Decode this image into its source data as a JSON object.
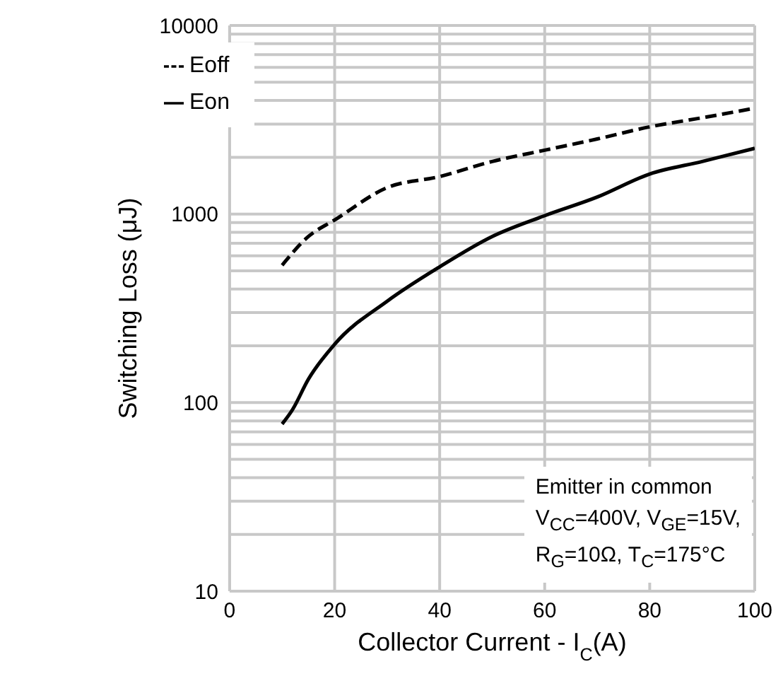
{
  "chart_data": {
    "type": "line",
    "xlabel": "Collector Current - I$_{C}$(A)",
    "ylabel": "Switching Loss (μJ)",
    "xlim": [
      0,
      100
    ],
    "xticks": [
      0,
      20,
      40,
      60,
      80,
      100
    ],
    "ylim": [
      10,
      10000
    ],
    "log": "y",
    "yticks": [
      10,
      {
        "value": 20,
        "label": null
      },
      {
        "value": 30,
        "label": null
      },
      {
        "value": 40,
        "label": null
      },
      {
        "value": 50,
        "label": null
      },
      {
        "value": 60,
        "label": null
      },
      {
        "value": 70,
        "label": null
      },
      {
        "value": 80,
        "label": null
      },
      {
        "value": 90,
        "label": null
      },
      100,
      {
        "value": 200,
        "label": null
      },
      {
        "value": 300,
        "label": null
      },
      {
        "value": 400,
        "label": null
      },
      {
        "value": 500,
        "label": null
      },
      {
        "value": 600,
        "label": null
      },
      {
        "value": 700,
        "label": null
      },
      {
        "value": 800,
        "label": null
      },
      {
        "value": 900,
        "label": null
      },
      1000,
      {
        "value": 2000,
        "label": null
      },
      {
        "value": 3000,
        "label": null
      },
      {
        "value": 4000,
        "label": null
      },
      {
        "value": 5000,
        "label": null
      },
      {
        "value": 6000,
        "label": null
      },
      {
        "value": 7000,
        "label": null
      },
      {
        "value": 8000,
        "label": null
      },
      {
        "value": 9000,
        "label": null
      },
      10000
    ],
    "grid": true,
    "legend": "top left",
    "marker": "none",
    "series": [
      {
        "name": "Eon",
        "color": "#000000",
        "line_style": "solid",
        "x": [
          10,
          12,
          15,
          20,
          30,
          40,
          50,
          60,
          70,
          80,
          90,
          100
        ],
        "values": [
          77,
          92,
          133,
          204,
          345,
          525,
          760,
          980,
          1230,
          1630,
          1900,
          2230
        ]
      },
      {
        "name": "Eoff",
        "color": "#000000",
        "line_style": "dashed",
        "x": [
          10,
          15,
          20,
          30,
          40,
          50,
          60,
          70,
          80,
          90,
          100
        ],
        "values": [
          535,
          760,
          930,
          1380,
          1580,
          1900,
          2180,
          2500,
          2900,
          3240,
          3640
        ]
      }
    ],
    "annotations": [
      "Emitter in common",
      "V$_{CC}$=400V, V$_{GE}$=15V,",
      "R$_{G}$=10Ω, T$_{C}$=175°C"
    ]
  }
}
